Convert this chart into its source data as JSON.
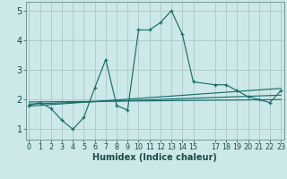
{
  "xlabel": "Humidex (Indice chaleur)",
  "bg_color": "#cce8e8",
  "grid_color": "#b0cccc",
  "line_color": "#1a6e6e",
  "x_values": [
    0,
    1,
    2,
    3,
    4,
    5,
    6,
    7,
    8,
    9,
    10,
    11,
    12,
    13,
    14,
    15,
    17,
    18,
    19,
    20,
    21,
    22,
    23
  ],
  "y_main": [
    1.8,
    1.9,
    1.7,
    1.3,
    1.0,
    1.4,
    2.4,
    3.35,
    1.8,
    1.65,
    4.35,
    4.35,
    4.6,
    5.0,
    4.2,
    2.6,
    2.5,
    2.5,
    2.3,
    2.1,
    2.0,
    1.9,
    2.3
  ],
  "trend1_x": [
    0,
    23
  ],
  "trend1_y": [
    1.78,
    2.38
  ],
  "trend2_x": [
    0,
    23
  ],
  "trend2_y": [
    1.85,
    2.15
  ],
  "trend3_x": [
    0,
    23
  ],
  "trend3_y": [
    1.92,
    2.0
  ],
  "xlim": [
    -0.3,
    23.3
  ],
  "ylim": [
    0.65,
    5.3
  ],
  "yticks": [
    1,
    2,
    3,
    4,
    5
  ],
  "xticks": [
    0,
    1,
    2,
    3,
    4,
    5,
    6,
    7,
    8,
    9,
    10,
    11,
    12,
    13,
    14,
    15,
    17,
    18,
    19,
    20,
    21,
    22,
    23
  ],
  "xlabel_fontsize": 7.0,
  "ytick_fontsize": 7.0,
  "xtick_fontsize": 5.8
}
